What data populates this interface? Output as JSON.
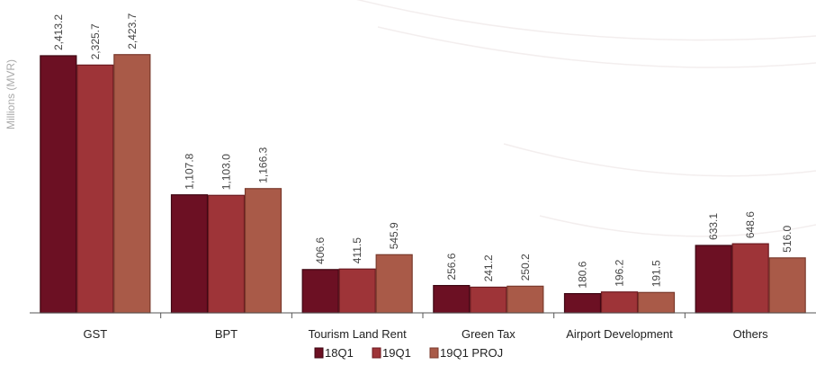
{
  "chart_data": {
    "type": "bar",
    "ylabel": "Millions (MVR)",
    "xlabel": "",
    "categories": [
      "GST",
      "BPT",
      "Tourism Land Rent",
      "Green Tax",
      "Airport Development",
      "Others"
    ],
    "series": [
      {
        "name": "18Q1",
        "values": [
          2413.2,
          1107.8,
          406.6,
          256.6,
          180.6,
          633.1
        ],
        "labels": [
          "2,413.2",
          "1,107.8",
          "406.6",
          "256.6",
          "180.6",
          "633.1"
        ]
      },
      {
        "name": "19Q1",
        "values": [
          2325.7,
          1103.0,
          411.5,
          241.2,
          196.2,
          648.6
        ],
        "labels": [
          "2,325.7",
          "1,103.0",
          "411.5",
          "241.2",
          "196.2",
          "648.6"
        ]
      },
      {
        "name": "19Q1 PROJ",
        "values": [
          2423.7,
          1166.3,
          545.9,
          250.2,
          191.5,
          516.0
        ],
        "labels": [
          "2,423.7",
          "1,166.3",
          "545.9",
          "250.2",
          "191.5",
          "516.0"
        ]
      }
    ],
    "ylim": [
      0,
      2700
    ],
    "grid": false,
    "legend_position": "bottom",
    "colors": {
      "18Q1": {
        "fill": "#6c1023",
        "stroke": "#3e0612"
      },
      "19Q1": {
        "fill": "#9e3438",
        "stroke": "#6c1a20"
      },
      "19Q1 PROJ": {
        "fill": "#a95a48",
        "stroke": "#7a3a2c"
      }
    },
    "axis_color": "#555555"
  }
}
